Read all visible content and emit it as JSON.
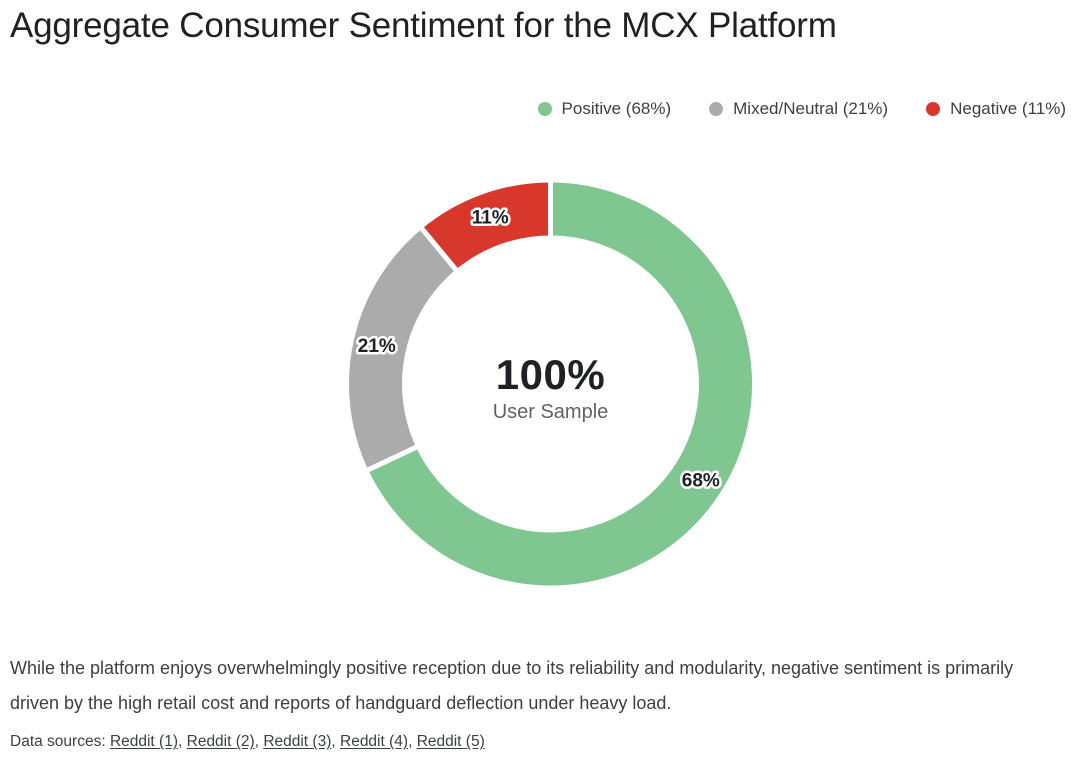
{
  "title": "Aggregate Consumer Sentiment for the MCX Platform",
  "legend": [
    {
      "label": "Positive (68%)",
      "color": "#7fc690"
    },
    {
      "label": "Mixed/Neutral (21%)",
      "color": "#ababab"
    },
    {
      "label": "Negative (11%)",
      "color": "#d8382c"
    }
  ],
  "chart_data": {
    "type": "pie",
    "subtype": "donut",
    "title": "Aggregate Consumer Sentiment for the MCX Platform",
    "categories": [
      "Positive",
      "Mixed/Neutral",
      "Negative"
    ],
    "values": [
      68,
      21,
      11
    ],
    "unit": "%",
    "colors": [
      "#7fc690",
      "#ababab",
      "#d8382c"
    ],
    "slice_labels": [
      "68%",
      "21%",
      "11%"
    ],
    "start_angle_deg": 0,
    "direction": "clockwise",
    "center_value": "100%",
    "center_label": "User Sample",
    "legend_position": "top-right",
    "legend_entries": [
      "Positive (68%)",
      "Mixed/Neutral (21%)",
      "Negative (11%)"
    ]
  },
  "center": {
    "value": "100%",
    "label": "User Sample"
  },
  "summary": "While the platform enjoys overwhelmingly positive reception due to its reliability and modularity, negative sentiment is primarily driven by the high retail cost and reports of handguard deflection under heavy load.",
  "sources": {
    "prefix": "Data sources: ",
    "separator": ", ",
    "links": [
      "Reddit (1)",
      "Reddit (2)",
      "Reddit (3)",
      "Reddit (4)",
      "Reddit (5)"
    ]
  }
}
